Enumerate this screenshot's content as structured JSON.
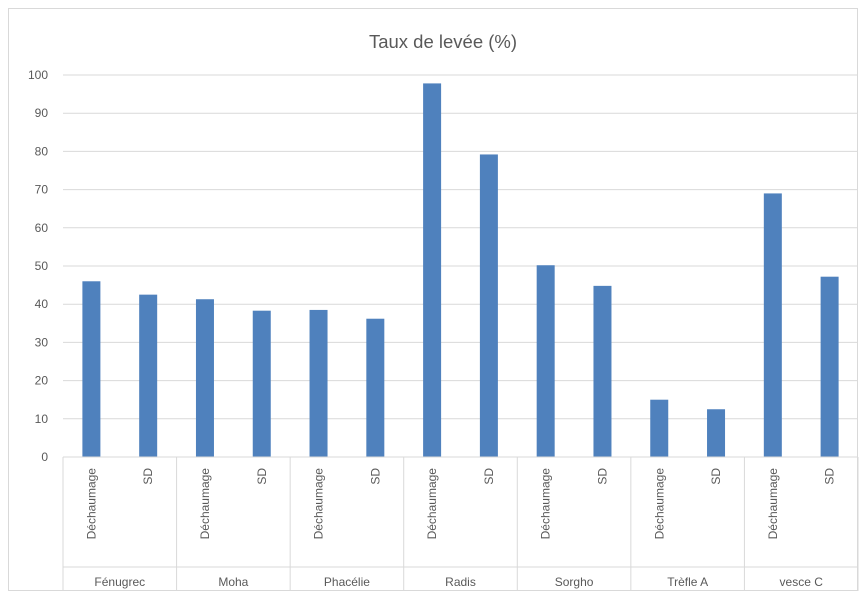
{
  "chart_data": {
    "type": "bar",
    "title": "Taux de levée (%)",
    "xlabel": "",
    "ylabel": "",
    "ylim": [
      0,
      100
    ],
    "yticks": [
      0,
      10,
      20,
      30,
      40,
      50,
      60,
      70,
      80,
      90,
      100
    ],
    "grid": true,
    "legend": "none",
    "bar_color": "#4f81bd",
    "groups": [
      {
        "name": "Fénugrec",
        "subcategories": [
          "Déchaumage",
          "SD"
        ],
        "values": [
          46,
          42.5
        ]
      },
      {
        "name": "Moha",
        "subcategories": [
          "Déchaumage",
          "SD"
        ],
        "values": [
          41.3,
          38.3
        ]
      },
      {
        "name": "Phacélie",
        "subcategories": [
          "Déchaumage",
          "SD"
        ],
        "values": [
          38.5,
          36.2
        ]
      },
      {
        "name": "Radis",
        "subcategories": [
          "Déchaumage",
          "SD"
        ],
        "values": [
          97.8,
          79.2
        ]
      },
      {
        "name": "Sorgho",
        "subcategories": [
          "Déchaumage",
          "SD"
        ],
        "values": [
          50.2,
          44.8
        ]
      },
      {
        "name": "Trèfle A",
        "subcategories": [
          "Déchaumage",
          "SD"
        ],
        "values": [
          15,
          12.5
        ]
      },
      {
        "name": "vesce C",
        "subcategories": [
          "Déchaumage",
          "SD"
        ],
        "values": [
          69,
          47.2
        ]
      }
    ]
  }
}
